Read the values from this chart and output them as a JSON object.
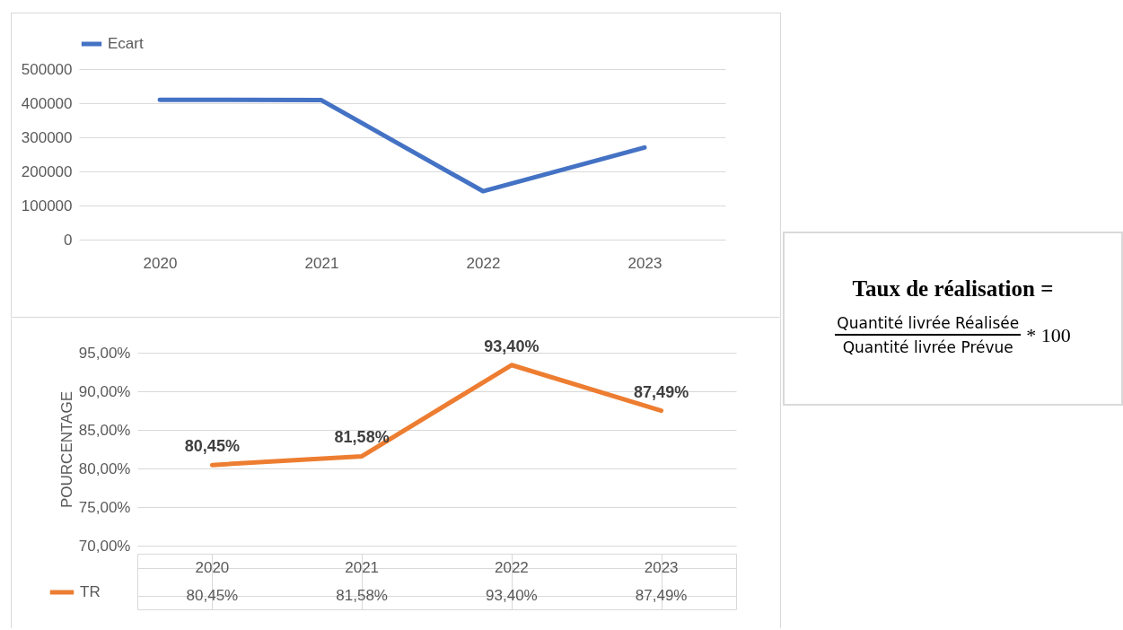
{
  "chart_data": [
    {
      "type": "line",
      "categories": [
        "2020",
        "2021",
        "2022",
        "2023"
      ],
      "series": [
        {
          "name": "Ecart",
          "color": "#4472c4",
          "values": [
            410000,
            409000,
            142000,
            270000
          ]
        }
      ],
      "ylim": [
        0,
        500000
      ],
      "yticks": [
        0,
        100000,
        200000,
        300000,
        400000,
        500000
      ],
      "grid": "y",
      "legend": "top"
    },
    {
      "type": "line",
      "categories": [
        "2020",
        "2021",
        "2022",
        "2023"
      ],
      "ylabel": "POURCENTAGE",
      "series": [
        {
          "name": "TR",
          "color": "#ed7d31",
          "values": [
            80.45,
            81.58,
            93.4,
            87.49
          ],
          "value_labels": [
            "80,45%",
            "81,58%",
            "93,40%",
            "87,49%"
          ]
        }
      ],
      "ylim": [
        70,
        95
      ],
      "yticks": [
        {
          "value": 70,
          "label": "70,00%"
        },
        {
          "value": 75,
          "label": "75,00%"
        },
        {
          "value": 80,
          "label": "80,00%"
        },
        {
          "value": 85,
          "label": "85,00%"
        },
        {
          "value": 90,
          "label": "90,00%"
        },
        {
          "value": 95,
          "label": "95,00%"
        }
      ],
      "grid": "y",
      "legend": "bottom left"
    },
    {
      "type": "other",
      "title": "Taux de réalisation =",
      "annotations": [
        "Quantité livrée Réalisée",
        "Quantité livrée Prévue",
        "* 100"
      ]
    }
  ]
}
